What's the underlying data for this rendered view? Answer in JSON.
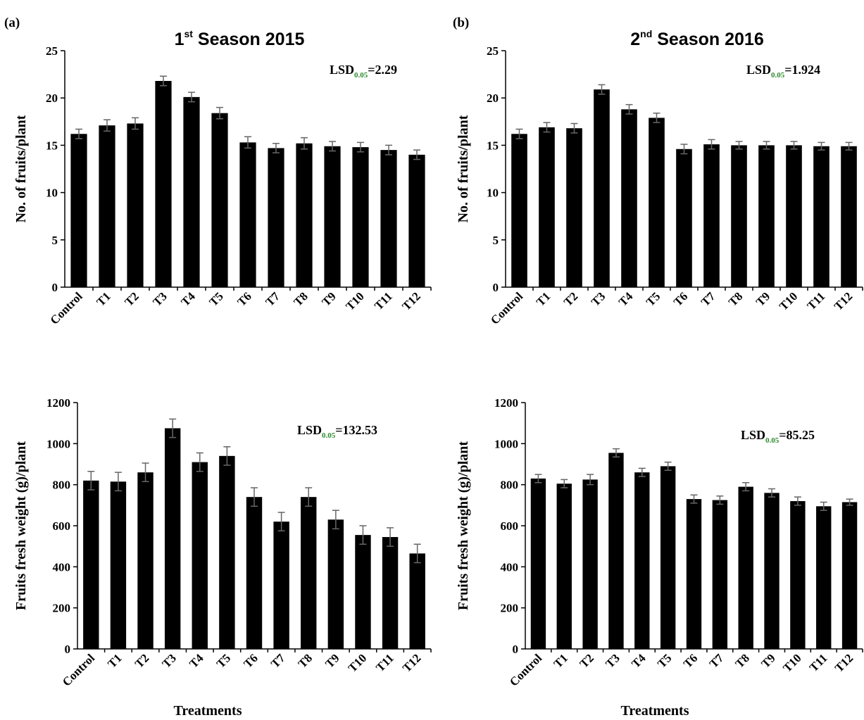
{
  "panel_labels": {
    "a": "(a)",
    "b": "(b)"
  },
  "season_titles": [
    {
      "prefix": "1",
      "sup": "st",
      "suffix": " Season 2015"
    },
    {
      "prefix": "2",
      "sup": "nd",
      "suffix": " Season 2016"
    }
  ],
  "xlabel": "Treatments",
  "lsd_base": "LSD",
  "lsd_sub": "0.05",
  "chart_data": [
    {
      "type": "bar",
      "panel": "a",
      "ylabel": "No. of fruits/plant",
      "ylim": [
        0,
        25
      ],
      "yticks": [
        "0",
        "5",
        "10",
        "15",
        "20",
        "25"
      ],
      "categories": [
        "Control",
        "T1",
        "T2",
        "T3",
        "T4",
        "T5",
        "T6",
        "T7",
        "T8",
        "T9",
        "T10",
        "T11",
        "T12"
      ],
      "values": [
        16.2,
        17.1,
        17.3,
        21.8,
        20.1,
        18.4,
        15.3,
        14.7,
        15.2,
        14.9,
        14.8,
        14.5,
        14.0
      ],
      "errors": [
        0.5,
        0.6,
        0.6,
        0.5,
        0.5,
        0.6,
        0.6,
        0.5,
        0.6,
        0.5,
        0.5,
        0.5,
        0.5
      ],
      "lsd_value": "=2.29"
    },
    {
      "type": "bar",
      "panel": "b",
      "ylabel": "No. of fruits/plant",
      "ylim": [
        0,
        25
      ],
      "yticks": [
        "0",
        "5",
        "10",
        "15",
        "20",
        "25"
      ],
      "categories": [
        "Control",
        "T1",
        "T2",
        "T3",
        "T4",
        "T5",
        "T6",
        "T7",
        "T8",
        "T9",
        "T10",
        "T11",
        "T12"
      ],
      "values": [
        16.2,
        16.9,
        16.8,
        20.9,
        18.8,
        17.9,
        14.6,
        15.1,
        15.0,
        15.0,
        15.0,
        14.9,
        14.9
      ],
      "errors": [
        0.5,
        0.5,
        0.5,
        0.5,
        0.5,
        0.5,
        0.5,
        0.5,
        0.4,
        0.4,
        0.4,
        0.4,
        0.4
      ],
      "lsd_value": "=1.924"
    },
    {
      "type": "bar",
      "panel": "a",
      "ylabel": "Fruits fresh weight (g)/plant",
      "ylim": [
        0,
        1200
      ],
      "yticks": [
        "0",
        "200",
        "400",
        "600",
        "800",
        "1000",
        "1200"
      ],
      "categories": [
        "Control",
        "T1",
        "T2",
        "T3",
        "T4",
        "T5",
        "T6",
        "T7",
        "T8",
        "T9",
        "T10",
        "T11",
        "T12"
      ],
      "values": [
        820,
        815,
        860,
        1075,
        910,
        940,
        740,
        620,
        740,
        630,
        555,
        545,
        465
      ],
      "errors": [
        45,
        45,
        45,
        45,
        45,
        45,
        45,
        45,
        45,
        45,
        45,
        45,
        45
      ],
      "lsd_value": "=132.53"
    },
    {
      "type": "bar",
      "panel": "b",
      "ylabel": "Fruits fresh weight (g)/plant",
      "ylim": [
        0,
        1200
      ],
      "yticks": [
        "0",
        "200",
        "400",
        "600",
        "800",
        "1000",
        "1200"
      ],
      "categories": [
        "Control",
        "T1",
        "T2",
        "T3",
        "T4",
        "T5",
        "T6",
        "T7",
        "T8",
        "T9",
        "T10",
        "T11",
        "T12"
      ],
      "values": [
        830,
        805,
        825,
        955,
        860,
        890,
        730,
        725,
        790,
        760,
        720,
        695,
        715
      ],
      "errors": [
        20,
        20,
        25,
        20,
        20,
        20,
        20,
        20,
        20,
        20,
        20,
        20,
        15
      ],
      "lsd_value": "=85.25"
    }
  ]
}
